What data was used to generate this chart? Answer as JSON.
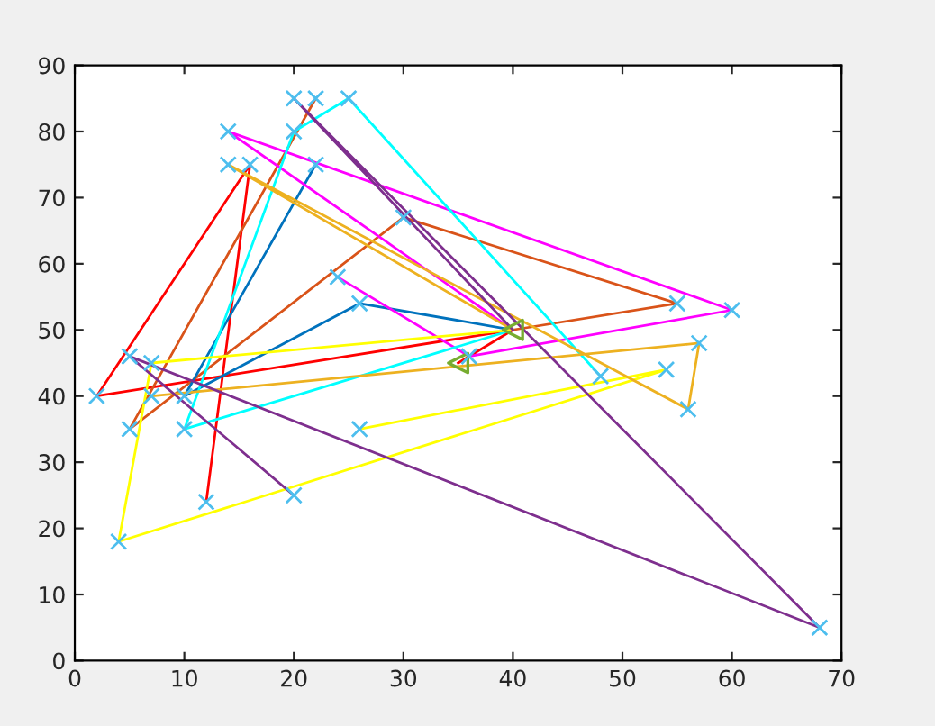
{
  "chart_data": {
    "type": "line",
    "xlim": [
      0,
      70
    ],
    "ylim": [
      0,
      90
    ],
    "xticks": [
      0,
      10,
      20,
      30,
      40,
      50,
      60,
      70
    ],
    "yticks": [
      0,
      10,
      20,
      30,
      40,
      50,
      60,
      70,
      80,
      90
    ],
    "grid": false,
    "legend": false,
    "marker": "none",
    "line_style": "solid",
    "series": [
      {
        "color": "#ff0000",
        "x": [
          35,
          40,
          2,
          16,
          12
        ],
        "values": [
          45,
          50,
          40,
          75,
          24
        ]
      },
      {
        "color": "#d95319",
        "x": [
          40,
          55,
          30,
          5,
          22
        ],
        "values": [
          50,
          54,
          67,
          35,
          85
        ]
      },
      {
        "color": "#0072bd",
        "x": [
          40,
          26,
          10,
          22
        ],
        "values": [
          50,
          54,
          40,
          75
        ]
      },
      {
        "color": "#ff00ff",
        "x": [
          40,
          14,
          60,
          36,
          24
        ],
        "values": [
          50,
          80,
          53,
          46,
          58
        ]
      },
      {
        "color": "#00ffff",
        "x": [
          40,
          10,
          20,
          25,
          48
        ],
        "values": [
          50,
          35,
          80,
          85,
          43
        ]
      },
      {
        "color": "#ffff00",
        "x": [
          40,
          7,
          4,
          54,
          26
        ],
        "values": [
          50,
          45,
          18,
          44,
          35
        ]
      },
      {
        "color": "#edb120",
        "x": [
          40,
          14,
          56,
          57,
          7
        ],
        "values": [
          50,
          75,
          38,
          48,
          40
        ]
      },
      {
        "color": "#7e2f8e",
        "x": [
          20,
          5,
          68,
          20,
          40
        ],
        "values": [
          25,
          46,
          5,
          85,
          50
        ]
      },
      {
        "type": "scatter",
        "marker": "cross",
        "color": "#4dbeee",
        "x": [
          20,
          22,
          25,
          14,
          20,
          14,
          16,
          22,
          30,
          24,
          26,
          55,
          60,
          57,
          5,
          36,
          7,
          48,
          54,
          2,
          7,
          10,
          56,
          5,
          10,
          26,
          20,
          12,
          4,
          68
        ],
        "values": [
          85,
          85,
          85,
          80,
          80,
          75,
          75,
          75,
          67,
          58,
          54,
          54,
          53,
          48,
          46,
          46,
          45,
          43,
          44,
          40,
          40,
          40,
          38,
          35,
          35,
          35,
          25,
          24,
          18,
          5
        ]
      },
      {
        "type": "scatter",
        "marker": "triangle",
        "color": "#77ac30",
        "x": [
          40,
          35
        ],
        "values": [
          50,
          45
        ]
      }
    ]
  }
}
